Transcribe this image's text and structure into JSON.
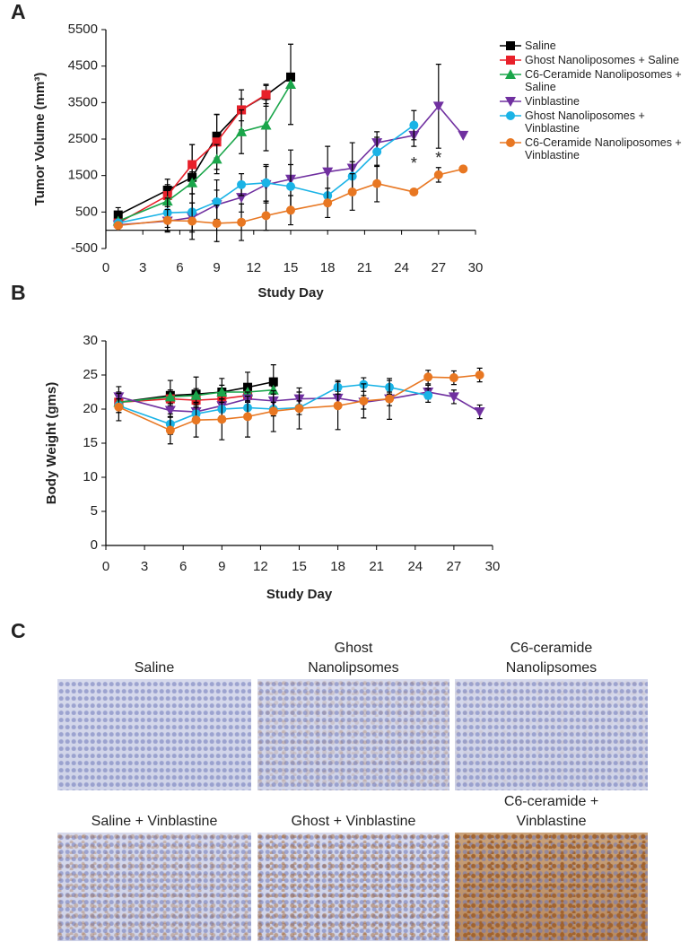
{
  "chart_data": [
    {
      "panel": "A",
      "type": "line",
      "x_label": "Study Day",
      "y_label": "Tumor Volume (mm³)",
      "xlim": [
        0,
        30
      ],
      "xticks": [
        0,
        3,
        6,
        9,
        12,
        15,
        18,
        21,
        24,
        27,
        30
      ],
      "ylim": [
        -500,
        5500
      ],
      "yticks": [
        -500,
        500,
        1500,
        2500,
        3500,
        4500,
        5500
      ],
      "legend": true,
      "series": [
        {
          "name": "Saline",
          "color": "#000000",
          "marker": "square",
          "x": [
            1,
            5,
            7,
            9,
            11,
            13,
            15
          ],
          "values": [
            420,
            1100,
            1450,
            2580,
            3300,
            3700,
            4200
          ],
          "errors": [
            200,
            300,
            900,
            600,
            550,
            300,
            0
          ]
        },
        {
          "name": "Ghost Nanoliposomes + Saline",
          "color": "#e8202a",
          "marker": "square",
          "x": [
            1,
            5,
            7,
            9,
            11,
            13
          ],
          "values": [
            200,
            950,
            1800,
            2420,
            3300,
            3720
          ],
          "errors": [
            100,
            300,
            550,
            750,
            300,
            250
          ]
        },
        {
          "name": "C6-Ceramide Nanoliposomes + Saline",
          "color": "#1aa64a",
          "marker": "triangle",
          "x": [
            1,
            5,
            7,
            9,
            11,
            13,
            15
          ],
          "values": [
            250,
            800,
            1300,
            1950,
            2700,
            2880,
            4000
          ],
          "errors": [
            100,
            300,
            300,
            400,
            600,
            700,
            1100
          ]
        },
        {
          "name": "Vinblastine",
          "color": "#7030a0",
          "marker": "triangle-down",
          "x": [
            1,
            5,
            7,
            9,
            11,
            13,
            15,
            18,
            20,
            22,
            25,
            27,
            29
          ],
          "values": [
            150,
            250,
            350,
            700,
            900,
            1250,
            1400,
            1600,
            1700,
            2400,
            2600,
            3400,
            2600
          ],
          "errors": [
            50,
            300,
            400,
            400,
            400,
            500,
            800,
            700,
            700,
            300,
            300,
            1150,
            0
          ]
        },
        {
          "name": "Ghost Nanoliposomes + Vinblastine",
          "color": "#1ab3e6",
          "marker": "circle",
          "x": [
            1,
            5,
            7,
            9,
            11,
            13,
            15,
            18,
            20,
            22,
            25
          ],
          "values": [
            200,
            480,
            500,
            780,
            1250,
            1300,
            1200,
            950,
            1480,
            2150,
            2880
          ],
          "errors": [
            50,
            400,
            500,
            600,
            300,
            500,
            600,
            0,
            400,
            400,
            400
          ]
        },
        {
          "name": "C6-Ceramide Nanoliposomes + Vinblastine",
          "color": "#e87722",
          "marker": "circle",
          "x": [
            1,
            5,
            7,
            9,
            11,
            13,
            15,
            18,
            20,
            22,
            25,
            27,
            29
          ],
          "values": [
            130,
            270,
            250,
            190,
            220,
            400,
            550,
            750,
            1050,
            1280,
            1050,
            1520,
            1680
          ],
          "errors": [
            50,
            300,
            500,
            500,
            500,
            400,
            400,
            400,
            500,
            500,
            0,
            200,
            0
          ]
        }
      ],
      "annotations": [
        {
          "text": "*",
          "x": 25,
          "y": 1800
        },
        {
          "text": "*",
          "x": 27,
          "y": 1950
        }
      ]
    },
    {
      "panel": "B",
      "type": "line",
      "x_label": "Study Day",
      "y_label": "Body Weight (gms)",
      "xlim": [
        0,
        30
      ],
      "xticks": [
        0,
        3,
        6,
        9,
        12,
        15,
        18,
        21,
        24,
        27,
        30
      ],
      "ylim": [
        0,
        30
      ],
      "yticks": [
        0,
        5,
        10,
        15,
        20,
        25,
        30
      ],
      "legend": false,
      "series": [
        {
          "color": "#000000",
          "marker": "square",
          "x": [
            1,
            5,
            7,
            9,
            11,
            13
          ],
          "values": [
            21,
            22,
            22.2,
            22.5,
            23.2,
            24
          ],
          "errors": [
            1.5,
            2.2,
            2.5,
            2,
            2.2,
            2.5
          ]
        },
        {
          "color": "#e8202a",
          "marker": "square",
          "x": [
            1,
            5,
            7,
            9,
            11
          ],
          "values": [
            21,
            21.5,
            21.3,
            21.5,
            22
          ],
          "errors": [
            1,
            1,
            1,
            1,
            1
          ]
        },
        {
          "color": "#1aa64a",
          "marker": "triangle",
          "x": [
            1,
            5,
            7,
            9,
            11,
            13
          ],
          "values": [
            21,
            21.8,
            22,
            22.5,
            22.5,
            22.8
          ],
          "errors": [
            1,
            1,
            1,
            1,
            1,
            0.5
          ]
        },
        {
          "color": "#7030a0",
          "marker": "triangle-down",
          "x": [
            1,
            5,
            7,
            9,
            11,
            13,
            15,
            18,
            20,
            22,
            25,
            27,
            29
          ],
          "values": [
            21.8,
            19.8,
            19.6,
            20.5,
            21.5,
            21.2,
            21.5,
            21.6,
            21,
            21.5,
            22.5,
            21.8,
            19.6
          ],
          "errors": [
            1.5,
            1,
            1,
            1,
            1,
            1,
            1,
            1,
            1,
            1,
            1,
            1,
            1
          ]
        },
        {
          "color": "#1ab3e6",
          "marker": "circle",
          "x": [
            1,
            5,
            7,
            9,
            11,
            13,
            15,
            18,
            20,
            22,
            25
          ],
          "values": [
            20.5,
            17.8,
            19.3,
            20,
            20.2,
            20,
            20.2,
            23.2,
            23.6,
            23.2,
            22
          ],
          "errors": [
            1,
            1.5,
            1,
            1,
            1,
            1,
            1,
            1,
            1,
            1,
            1
          ]
        },
        {
          "color": "#e87722",
          "marker": "circle",
          "x": [
            1,
            5,
            7,
            9,
            11,
            13,
            15,
            18,
            20,
            22,
            25,
            27,
            29
          ],
          "values": [
            20.3,
            16.9,
            18.4,
            18.5,
            18.9,
            19.7,
            20.1,
            20.5,
            21.2,
            21.5,
            24.7,
            24.6,
            25
          ],
          "errors": [
            2,
            2,
            2.5,
            3,
            3,
            3,
            3,
            3.5,
            2.5,
            3,
            1,
            1,
            1
          ]
        }
      ]
    }
  ],
  "panel_c": {
    "panel": "C",
    "images": [
      {
        "title_lines": [
          "Saline"
        ]
      },
      {
        "title_lines": [
          "Ghost",
          "Nanolipsomes"
        ]
      },
      {
        "title_lines": [
          "C6-ceramide",
          "Nanolipsomes"
        ]
      },
      {
        "title_lines": [
          "Saline + Vinblastine"
        ]
      },
      {
        "title_lines": [
          "Ghost + Vinblastine"
        ]
      },
      {
        "title_lines": [
          "C6-ceramide +",
          "Vinblastine"
        ]
      }
    ]
  }
}
